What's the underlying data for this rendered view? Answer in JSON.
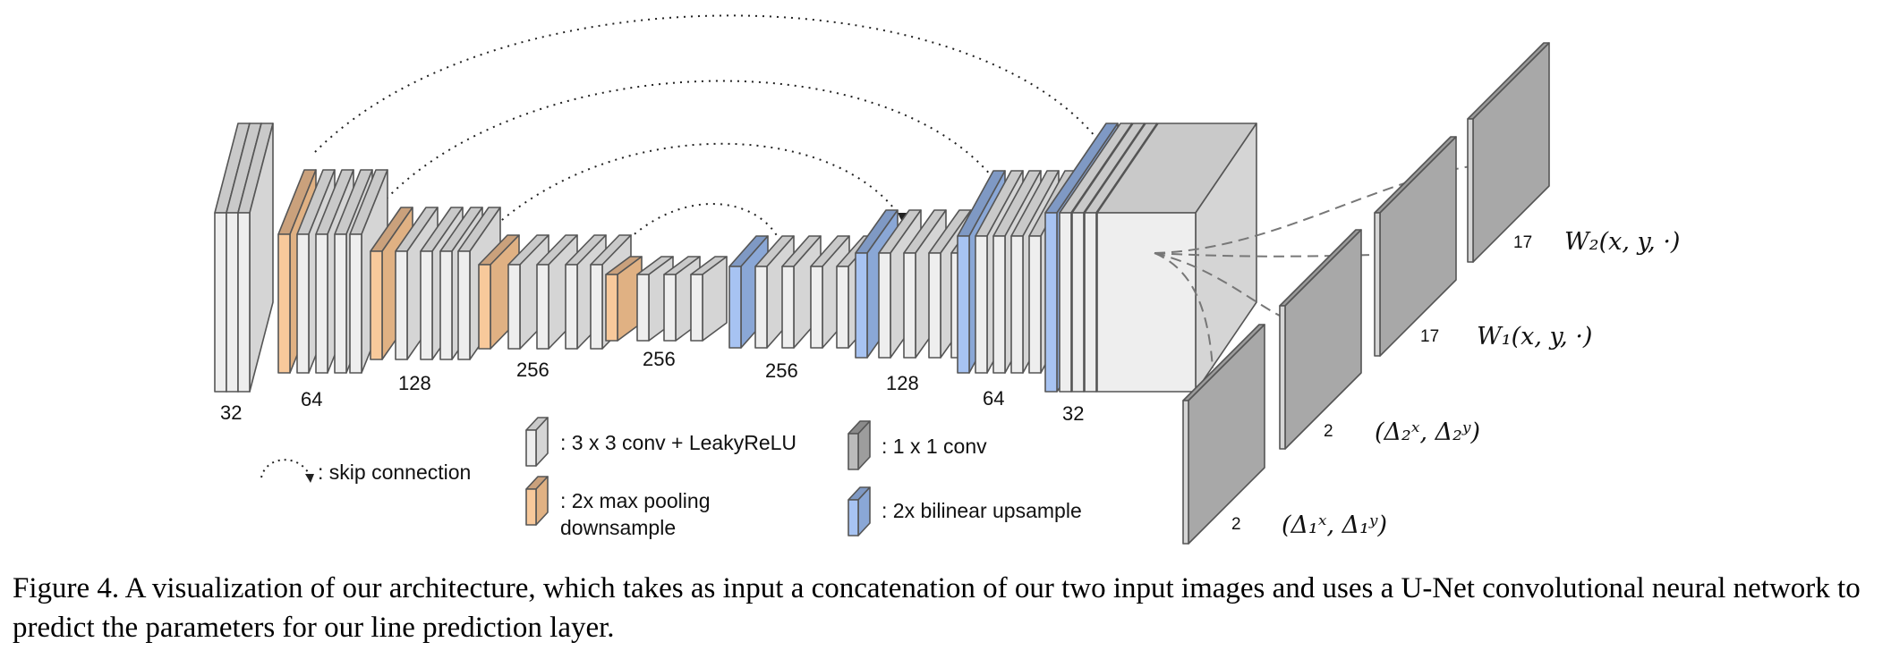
{
  "legend": {
    "skip": ": skip connection",
    "conv3": ": 3 x 3 conv + LeakyReLU",
    "pool_line1": ": 2x max pooling",
    "pool_line2": "downsample",
    "conv1": ": 1 x 1 conv",
    "upsample": ": 2x bilinear upsample"
  },
  "channel_labels": [
    "32",
    "64",
    "128",
    "256",
    "256",
    "256",
    "128",
    "64",
    "32"
  ],
  "outputs": {
    "w2_channels": "17",
    "w2_label": "W₂(x, y, ·)",
    "w1_channels": "17",
    "w1_label": "W₁(x, y, ·)",
    "d2_channels": "2",
    "d2_label": "(Δ₂ˣ, Δ₂ʸ)",
    "d1_channels": "2",
    "d1_label": "(Δ₁ˣ, Δ₁ʸ)"
  },
  "caption": "Figure 4.  A visualization of our architecture, which takes as input a concatenation of our two input images and uses a U-Net convolutional neural network to predict the parameters for our line prediction layer.",
  "colors": {
    "conv": "#eeeeee",
    "conv_top": "#c9c9c9",
    "pool": "#f8c99b",
    "pool_top": "#caa17c",
    "up": "#a7c3f2",
    "up_top": "#7f99c4",
    "out": "#d6d6d6",
    "out_top": "#9a9a9a",
    "stroke": "#555555"
  }
}
